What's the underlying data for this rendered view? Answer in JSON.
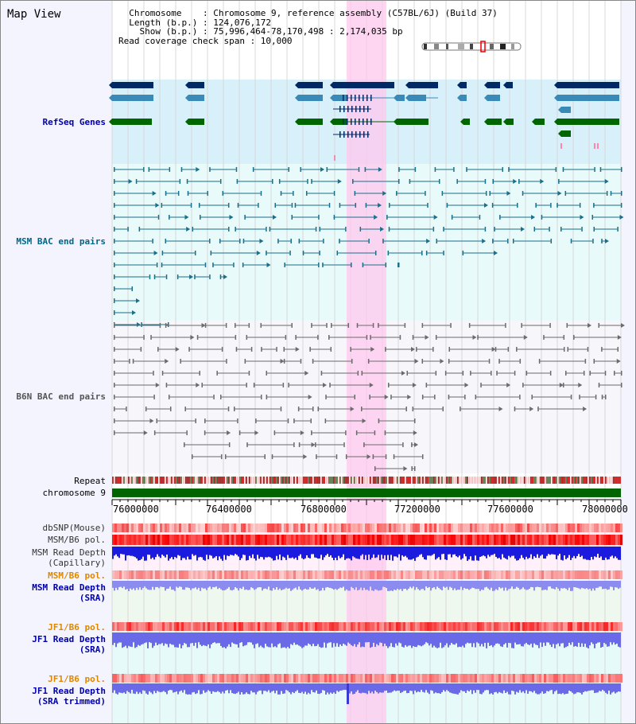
{
  "header": {
    "title": "Map View",
    "info_lines": [
      "  Chromosome    : Chromosome 9, reference assembly (C57BL/6J) (Build 37)",
      "  Length (b.p.) : 124,076,172",
      "    Show (b.p.) : 75,996,464-78,170,498 : 2,174,035 bp",
      "Read coverage check span : 10,000"
    ]
  },
  "tracks": {
    "refseq": "RefSeq Genes",
    "msm_bac": "MSM BAC end pairs",
    "b6n_bac": "B6N BAC end pairs",
    "repeat": "Repeat",
    "chromosome": "chromosome 9",
    "dbsnp": "dbSNP(Mouse)",
    "msm_b6_pol": "MSM/B6 pol.",
    "msm_depth_cap_1": "MSM Read Depth",
    "msm_depth_cap_2": "(Capillary)",
    "msm_b6_pol_sra": "MSM/B6 pol.",
    "msm_depth_sra_1": "MSM Read Depth",
    "msm_depth_sra_2": "(SRA)",
    "jf1_b6_pol": "JF1/B6 pol.",
    "jf1_depth_sra_1": "JF1 Read Depth",
    "jf1_depth_sra_2": "(SRA)",
    "jf1_b6_pol_trim": "JF1/B6 pol.",
    "jf1_depth_trim_1": "JF1 Read Depth",
    "jf1_depth_trim_2": "(SRA trimmed)"
  },
  "axis": {
    "ticks": [
      "76000000",
      "76400000",
      "76800000",
      "77200000",
      "77600000",
      "78000000"
    ]
  },
  "colors": {
    "refseq_label": "#0000aa",
    "msm_label": "#006688",
    "b6n_label": "#555555",
    "pol_label": "#dd8800",
    "depth_label": "#0000aa",
    "highlight": "#ffc8ee",
    "gene_dark": "#002a66",
    "gene_mid": "#3a8ab8",
    "gene_green": "#006600",
    "chrom_bar": "#006400"
  }
}
